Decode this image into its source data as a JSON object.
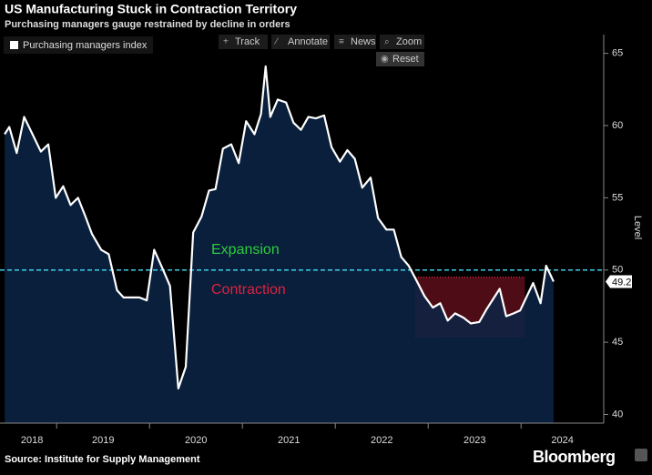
{
  "chart_data": {
    "type": "area-line",
    "title": "US Manufacturing Stuck in Contraction Territory",
    "subtitle": "Purchasing managers gauge restrained by decline in orders",
    "y_label": "Level",
    "source": "Source: Institute for Supply Management",
    "brand": "Bloomberg",
    "toolbar": [
      "Track",
      "Annotate",
      "News",
      "Zoom",
      "Reset"
    ],
    "annotations": [
      {
        "text": "Expansion",
        "color": "#2ecc40"
      },
      {
        "text": "Contraction",
        "color": "#e0213f"
      }
    ],
    "reference_line": {
      "value": 50,
      "color": "#3fd0e8"
    },
    "highlight": {
      "xlim": [
        2022.86,
        2024.04
      ],
      "ylim": [
        45.4,
        49.5
      ],
      "color": "#e0213f"
    },
    "x": [
      2018.44,
      2018.49,
      2018.57,
      2018.65,
      2018.83,
      2018.91,
      2018.99,
      2019.07,
      2019.15,
      2019.23,
      2019.31,
      2019.38,
      2019.48,
      2019.56,
      2019.65,
      2019.72,
      2019.81,
      2019.89,
      2019.97,
      2020.05,
      2020.14,
      2020.22,
      2020.31,
      2020.39,
      2020.47,
      2020.56,
      2020.64,
      2020.71,
      2020.79,
      2020.88,
      2020.96,
      2021.04,
      2021.13,
      2021.2,
      2021.25,
      2021.3,
      2021.38,
      2021.47,
      2021.55,
      2021.63,
      2021.71,
      2021.79,
      2021.88,
      2021.96,
      2022.05,
      2022.13,
      2022.21,
      2022.29,
      2022.38,
      2022.46,
      2022.55,
      2022.63,
      2022.71,
      2022.79,
      2022.88,
      2022.96,
      2023.05,
      2023.13,
      2023.21,
      2023.29,
      2023.38,
      2023.46,
      2023.55,
      2023.63,
      2023.77,
      2023.84,
      2023.92,
      2023.99,
      2024.13,
      2024.21,
      2024.27,
      2024.35
    ],
    "series": [
      {
        "name": "Purchasing managers index",
        "color": "#ffffff",
        "fill": "#0b2545",
        "values": [
          59.4,
          59.9,
          58.1,
          60.6,
          58.2,
          58.7,
          55,
          55.8,
          54.5,
          55,
          53.7,
          52.5,
          51.4,
          51.1,
          48.6,
          48.1,
          48.1,
          48.1,
          47.9,
          51.4,
          50.1,
          48.9,
          41.8,
          43.3,
          52.6,
          53.7,
          55.5,
          55.6,
          58.4,
          58.7,
          57.4,
          60.3,
          59.4,
          60.8,
          64.1,
          60.6,
          61.8,
          61.6,
          60.2,
          59.7,
          60.6,
          60.5,
          60.7,
          58.5,
          57.5,
          58.3,
          57.7,
          55.7,
          56.4,
          53.6,
          52.8,
          52.8,
          50.9,
          50.3,
          49.2,
          48.2,
          47.4,
          47.7,
          46.5,
          47,
          46.7,
          46.3,
          46.4,
          47.3,
          48.7,
          46.8,
          47,
          47.2,
          49.1,
          47.7,
          50.3,
          49.2
        ]
      }
    ],
    "xlim": [
      2018.39,
      2024.89
    ],
    "xticks": [
      2018,
      2019,
      2020,
      2021,
      2022,
      2023,
      2024
    ],
    "ylim": [
      39.4,
      66.3
    ],
    "yticks": [
      40,
      45,
      50,
      55,
      60,
      65
    ]
  }
}
